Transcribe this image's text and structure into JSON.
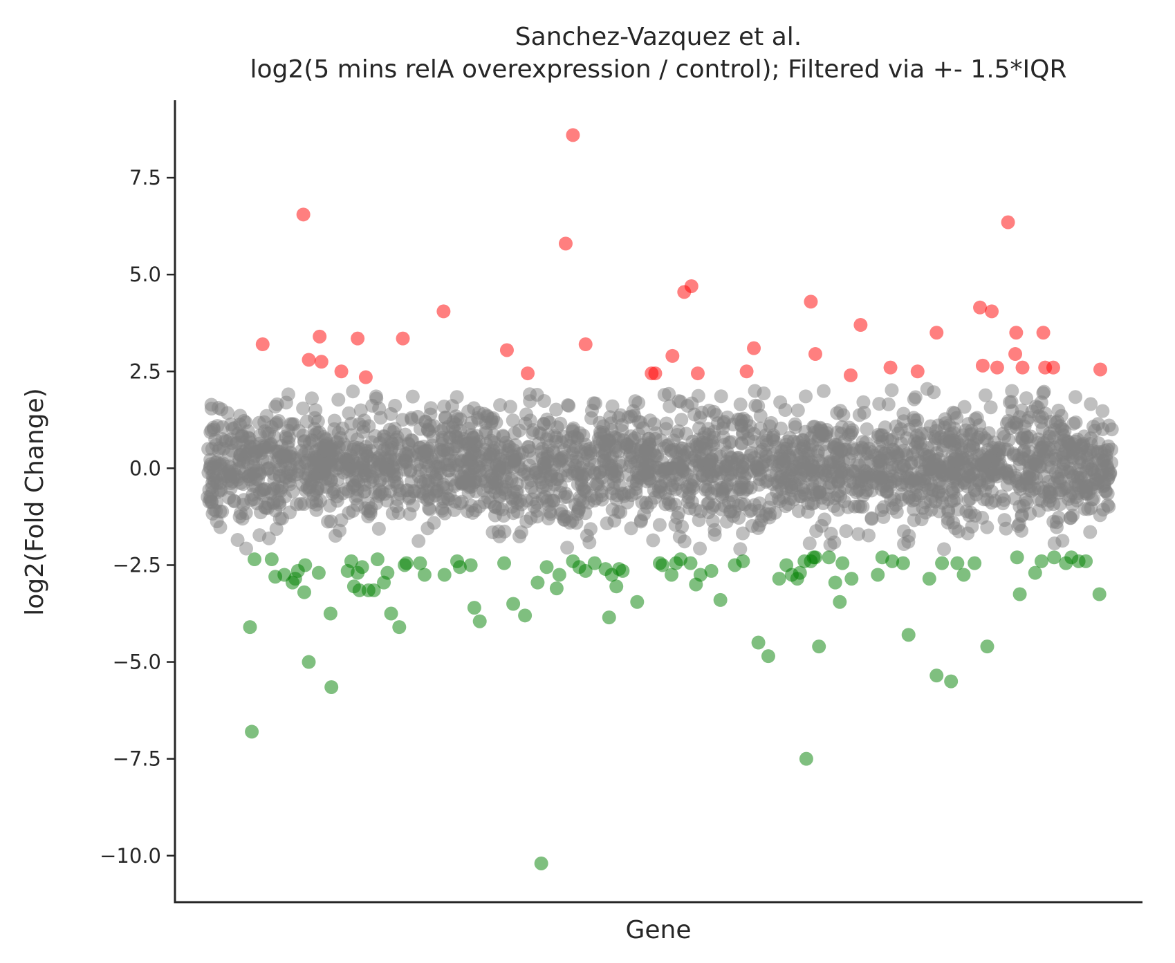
{
  "chart_data": {
    "type": "scatter",
    "title": "Sanchez-Vazquez et al.",
    "subtitle": "log2(5 mins relA overexpression / control); Filtered via +- 1.5*IQR",
    "xlabel": "Gene",
    "ylabel": "log2(Fold Change)",
    "ylim": [
      -11.2,
      9.5
    ],
    "xlim": [
      0,
      1
    ],
    "yticks": [
      -10.0,
      -7.5,
      -5.0,
      -2.5,
      0.0,
      2.5,
      5.0,
      7.5
    ],
    "ytick_labels": [
      "−10.0",
      "−7.5",
      "−5.0",
      "−2.5",
      "0.0",
      "2.5",
      "5.0",
      "7.5"
    ],
    "xticks": [],
    "grid": false,
    "legend": "none",
    "point_alpha": 0.5,
    "filter_band": [
      -2.2,
      2.2
    ],
    "colors": {
      "up": "#ff0000",
      "down": "#008000",
      "neutral": "#808080",
      "axis": "#262626",
      "text": "#262626"
    },
    "series": [
      {
        "color": "#ff0000",
        "x": [
          0.061,
          0.106,
          0.112,
          0.124,
          0.126,
          0.148,
          0.166,
          0.175,
          0.216,
          0.261,
          0.331,
          0.354,
          0.396,
          0.404,
          0.418,
          0.491,
          0.495,
          0.514,
          0.527,
          0.535,
          0.542,
          0.596,
          0.604,
          0.667,
          0.672,
          0.711,
          0.722,
          0.755,
          0.785,
          0.806,
          0.854,
          0.857,
          0.867,
          0.873,
          0.885,
          0.893,
          0.894,
          0.901,
          0.924,
          0.926,
          0.935,
          0.987
        ],
        "y": [
          3.2,
          6.55,
          2.8,
          3.4,
          2.75,
          2.5,
          3.35,
          2.35,
          3.35,
          4.05,
          3.05,
          2.45,
          5.8,
          8.6,
          3.2,
          2.45,
          2.45,
          2.9,
          4.55,
          4.7,
          2.45,
          2.5,
          3.1,
          4.3,
          2.95,
          2.4,
          3.7,
          2.6,
          2.5,
          3.5,
          4.15,
          2.65,
          4.05,
          2.6,
          6.35,
          2.95,
          3.5,
          2.6,
          3.5,
          2.6,
          2.6,
          2.55
        ]
      },
      {
        "color": "#008000",
        "x": [
          0.047,
          0.049,
          0.052,
          0.071,
          0.075,
          0.085,
          0.094,
          0.097,
          0.1,
          0.107,
          0.108,
          0.112,
          0.123,
          0.136,
          0.137,
          0.155,
          0.159,
          0.162,
          0.166,
          0.168,
          0.171,
          0.178,
          0.184,
          0.188,
          0.195,
          0.199,
          0.203,
          0.212,
          0.218,
          0.22,
          0.235,
          0.24,
          0.262,
          0.276,
          0.279,
          0.291,
          0.295,
          0.301,
          0.328,
          0.338,
          0.351,
          0.365,
          0.369,
          0.375,
          0.386,
          0.389,
          0.404,
          0.411,
          0.418,
          0.428,
          0.44,
          0.444,
          0.447,
          0.452,
          0.455,
          0.459,
          0.475,
          0.5,
          0.503,
          0.513,
          0.518,
          0.523,
          0.534,
          0.54,
          0.545,
          0.557,
          0.567,
          0.583,
          0.592,
          0.609,
          0.62,
          0.632,
          0.64,
          0.646,
          0.652,
          0.655,
          0.66,
          0.662,
          0.667,
          0.67,
          0.672,
          0.676,
          0.687,
          0.694,
          0.699,
          0.702,
          0.712,
          0.741,
          0.746,
          0.757,
          0.769,
          0.775,
          0.798,
          0.806,
          0.812,
          0.822,
          0.829,
          0.836,
          0.848,
          0.862,
          0.895,
          0.898,
          0.915,
          0.922,
          0.936,
          0.949,
          0.955,
          0.963,
          0.971,
          0.986
        ],
        "y": [
          -4.1,
          -6.8,
          -2.35,
          -2.35,
          -2.8,
          -2.75,
          -2.95,
          -2.85,
          -2.65,
          -3.2,
          -2.5,
          -5.0,
          -2.7,
          -3.75,
          -5.65,
          -2.65,
          -2.4,
          -3.05,
          -2.7,
          -3.15,
          -2.55,
          -3.15,
          -3.15,
          -2.35,
          -2.95,
          -2.7,
          -3.75,
          -4.1,
          -2.5,
          -2.45,
          -2.45,
          -2.75,
          -2.75,
          -2.4,
          -2.55,
          -2.5,
          -3.6,
          -3.95,
          -2.45,
          -3.5,
          -3.8,
          -2.95,
          -10.2,
          -2.55,
          -3.1,
          -2.75,
          -2.4,
          -2.55,
          -2.65,
          -2.45,
          -2.6,
          -3.85,
          -2.75,
          -3.05,
          -2.6,
          -2.65,
          -3.45,
          -2.45,
          -2.5,
          -2.75,
          -2.45,
          -2.35,
          -2.45,
          -3.0,
          -2.75,
          -2.65,
          -3.4,
          -2.5,
          -2.4,
          -4.5,
          -4.85,
          -2.85,
          -2.5,
          -2.75,
          -2.85,
          -2.7,
          -2.4,
          -7.5,
          -2.4,
          -2.3,
          -2.3,
          -4.6,
          -2.3,
          -2.95,
          -3.45,
          -2.45,
          -2.85,
          -2.75,
          -2.3,
          -2.4,
          -2.45,
          -4.3,
          -2.85,
          -5.35,
          -2.45,
          -5.5,
          -2.45,
          -2.75,
          -2.45,
          -4.6,
          -2.3,
          -3.25,
          -2.7,
          -2.4,
          -2.3,
          -2.45,
          -2.3,
          -2.4,
          -2.4,
          -3.25
        ]
      }
    ]
  }
}
